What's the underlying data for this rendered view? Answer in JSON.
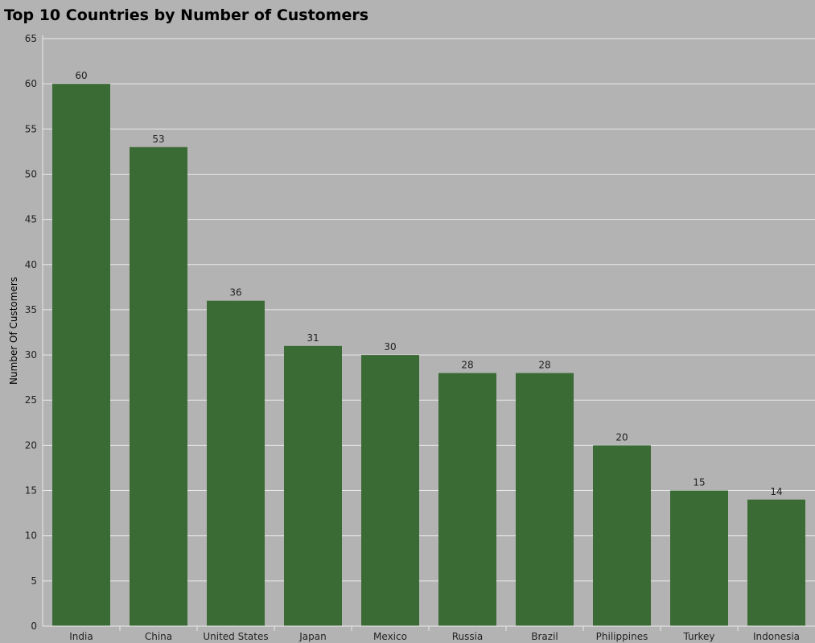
{
  "chart_data": {
    "type": "bar",
    "title": "Top 10 Countries by Number of Customers",
    "xlabel": "",
    "ylabel": "Number Of Customers",
    "categories": [
      "India",
      "China",
      "United States",
      "Japan",
      "Mexico",
      "Russia",
      "Brazil",
      "Philippines",
      "Turkey",
      "Indonesia"
    ],
    "values": [
      60,
      53,
      36,
      31,
      30,
      28,
      28,
      20,
      15,
      14
    ],
    "ylim": [
      0,
      65
    ],
    "yticks": [
      0,
      5,
      10,
      15,
      20,
      25,
      30,
      35,
      40,
      45,
      50,
      55,
      60,
      65
    ],
    "grid": true,
    "bar_color": "#3b6b35",
    "grid_color": "#e8e8e8",
    "background_color": "#b3b3b3"
  }
}
